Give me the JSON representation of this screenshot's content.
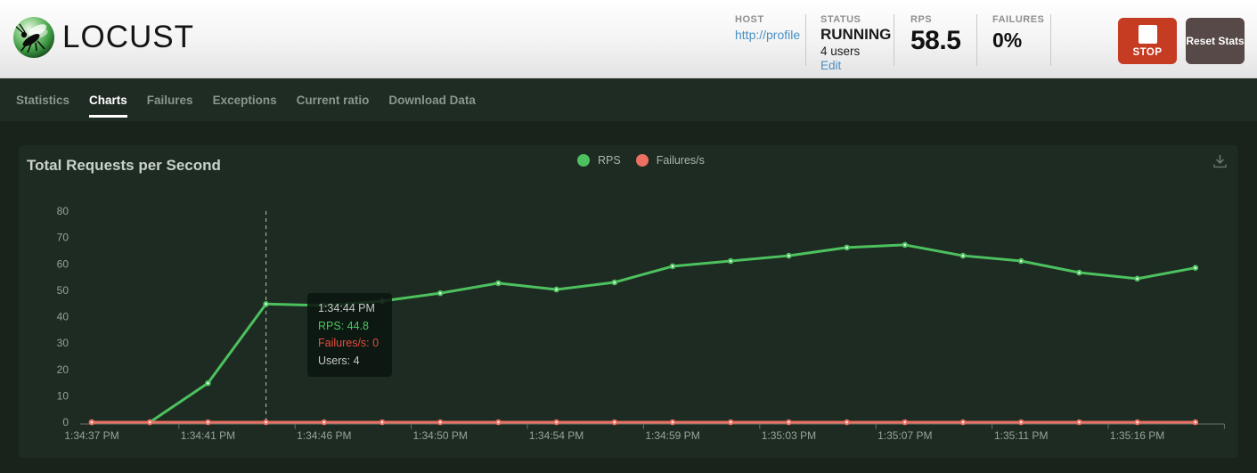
{
  "header": {
    "logo_text": "LOCUST",
    "host": {
      "label": "HOST",
      "value": "http://profile"
    },
    "status": {
      "label": "STATUS",
      "state": "RUNNING",
      "users": "4 users",
      "edit_link": "Edit"
    },
    "rps": {
      "label": "RPS",
      "value": "58.5"
    },
    "failures": {
      "label": "FAILURES",
      "value": "0%"
    },
    "stop_button": "STOP",
    "reset_button": "Reset Stats"
  },
  "nav": {
    "tabs": [
      {
        "label": "Statistics",
        "active": false
      },
      {
        "label": "Charts",
        "active": true
      },
      {
        "label": "Failures",
        "active": false
      },
      {
        "label": "Exceptions",
        "active": false
      },
      {
        "label": "Current ratio",
        "active": false
      },
      {
        "label": "Download Data",
        "active": false
      }
    ]
  },
  "chart": {
    "title": "Total Requests per Second",
    "legend": [
      {
        "label": "RPS",
        "color": "#4cc15e"
      },
      {
        "label": "Failures/s",
        "color": "#ec7063"
      }
    ],
    "tooltip": {
      "time": "1:34:44 PM",
      "rps": "RPS: 44.8",
      "failures": "Failures/s: 0",
      "users": "Users: 4"
    }
  },
  "chart_data": {
    "type": "line",
    "title": "Total Requests per Second",
    "x_tick_labels": [
      "1:34:37 PM",
      "1:34:41 PM",
      "1:34:46 PM",
      "1:34:50 PM",
      "1:34:54 PM",
      "1:34:59 PM",
      "1:35:03 PM",
      "1:35:07 PM",
      "1:35:11 PM",
      "1:35:16 PM"
    ],
    "y_ticks": [
      0,
      10,
      20,
      30,
      40,
      50,
      60,
      70,
      80
    ],
    "ylim": [
      0,
      80
    ],
    "grid": false,
    "legend_position": "top-center",
    "series": [
      {
        "name": "RPS",
        "color": "#4cc15e",
        "values": [
          0,
          0,
          14.8,
          44.8,
          44.2,
          45.9,
          48.9,
          52.7,
          50.3,
          53.0,
          59.1,
          61.1,
          63.1,
          66.2,
          67.2,
          63.1,
          61.1,
          56.7,
          54.4,
          58.5
        ]
      },
      {
        "name": "Failures/s",
        "color": "#ec7063",
        "values": [
          0,
          0,
          0,
          0,
          0,
          0,
          0,
          0,
          0,
          0,
          0,
          0,
          0,
          0,
          0,
          0,
          0,
          0,
          0,
          0
        ]
      }
    ],
    "highlight": {
      "index": 3,
      "time": "1:34:44 PM",
      "rps": 44.8,
      "failures_per_s": 0,
      "users": 4
    }
  },
  "colors": {
    "rps_green": "#4cc15e",
    "failures_red": "#ec7063",
    "link_blue": "#4a8fc2",
    "stop_red": "#c53c22",
    "nav_bg": "#1f2c23",
    "panel_bg": "#1e2b22"
  }
}
